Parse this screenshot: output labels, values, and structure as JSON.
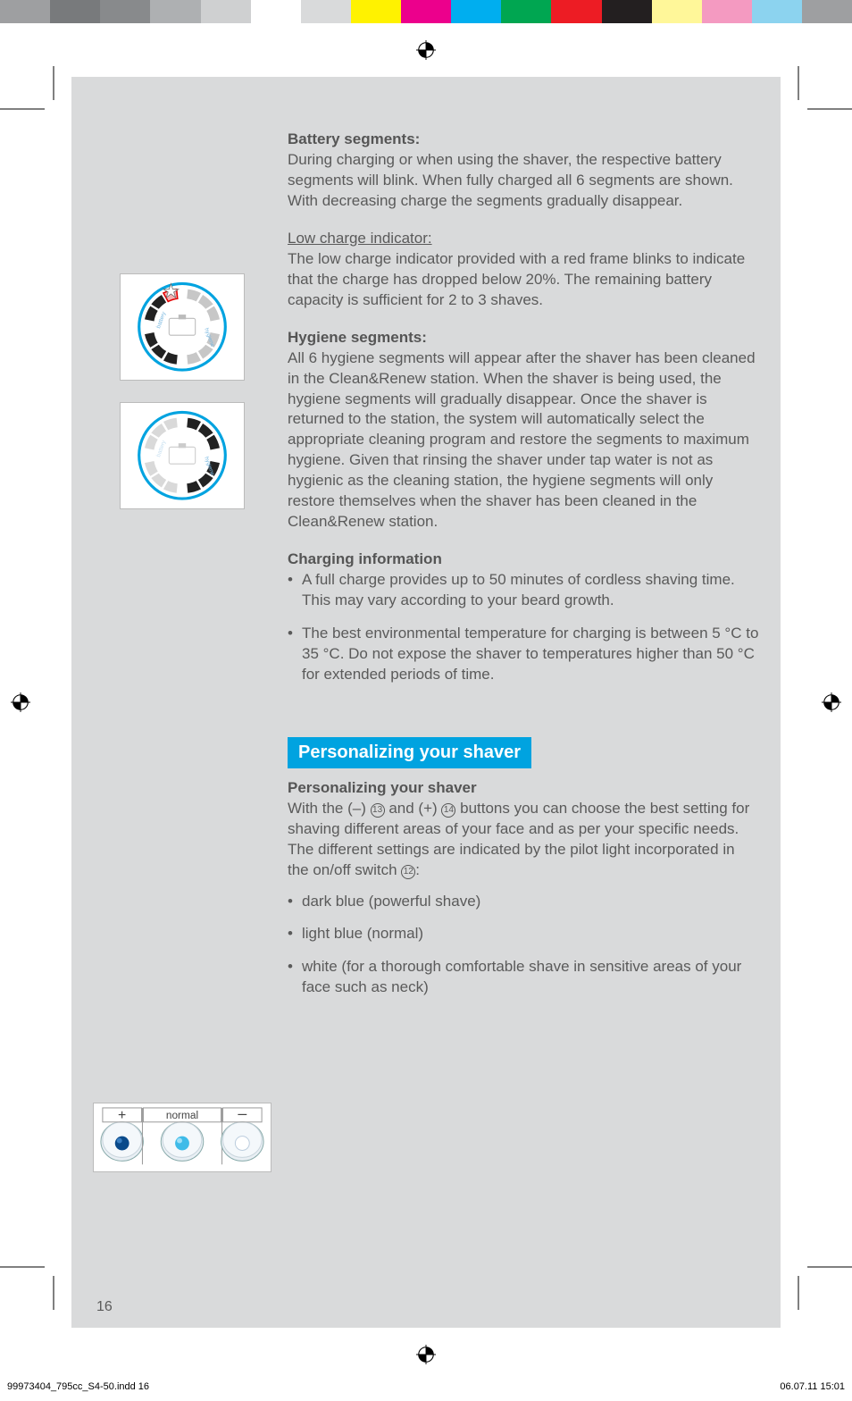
{
  "colorbar": [
    "#9e9fa1",
    "#787a7c",
    "#888a8c",
    "#aeb0b2",
    "#cfd0d1",
    "#ffffff",
    "#d9dadb",
    "#fff200",
    "#ec008c",
    "#00aeef",
    "#00a651",
    "#ed1c24",
    "#231f20",
    "#fff799",
    "#f49ac1",
    "#8cd3ef",
    "#9e9fa1"
  ],
  "sections": {
    "battery": {
      "title": "Battery segments:",
      "body": "During charging or when using the shaver, the respective battery segments will blink. When fully charged all 6 segments are shown. With decreasing charge the segments gradually disappear."
    },
    "lowcharge": {
      "title": "Low charge indicator:",
      "body": "The low charge indicator provided with a red frame blinks to indicate that the charge has dropped below 20%. The remaining battery capacity is sufficient for 2 to 3 shaves."
    },
    "hygiene": {
      "title": "Hygiene segments:",
      "body": "All 6 hygiene segments will appear after the shaver has been cleaned in the Clean&Renew station. When the shaver is being used, the hygiene segments will gradually disappear. Once the shaver is returned to the station, the system will automatically select the appropriate cleaning program and restore the segments to maximum hygiene. Given that rinsing the shaver under tap water is not as hygienic as the cleaning station, the hygiene segments will only restore themselves when the shaver has been cleaned in the Clean&Renew station."
    },
    "charging": {
      "title": "Charging information",
      "items": [
        "A full charge provides up to 50 minutes of cordless shaving time. This may vary according to your beard growth.",
        "The best environmental temperature for charging is between 5 °C to 35 °C. Do not expose the shaver to temperatures higher than 50 °C for extended periods of time."
      ]
    },
    "personalizing_banner": "Personalizing your shaver",
    "personalizing": {
      "title": "Personalizing your shaver",
      "intro_parts": {
        "a": "With the (–) ",
        "ref13": "13",
        "b": " and (+) ",
        "ref14": "14",
        "c": " buttons you can choose the best setting for shaving different areas of your face and as per your specific needs. The different settings are indicated by the pilot light incorporated in the on/off switch ",
        "ref12": "12",
        "d": ":"
      },
      "items": [
        "dark blue (powerful shave)",
        "light blue (normal)",
        "white (for a thorough comfortable shave in sensitive areas of your face such as neck)"
      ]
    }
  },
  "illustrations": {
    "display1": {
      "battery_label": "battery",
      "hygiene_label": "hygiene",
      "red_frame": true,
      "battery_emphasis": true
    },
    "display2": {
      "battery_label": "battery",
      "hygiene_label": "hygiene",
      "hygiene_emphasis": true
    },
    "buttons": {
      "plus": "+",
      "center_label": "normal",
      "minus": "–",
      "colors": {
        "plus": "#0a4a8a",
        "center": "#3fbbe8",
        "minus": "#ffffff"
      }
    }
  },
  "colors": {
    "page_bg": "#d9dadb",
    "text": "#5a5a5a",
    "banner_bg": "#00a3e0",
    "banner_text": "#ffffff"
  },
  "page_number": "16",
  "footer": {
    "left": "99973404_795cc_S4-50.indd   16",
    "right": "06.07.11   15:01"
  }
}
